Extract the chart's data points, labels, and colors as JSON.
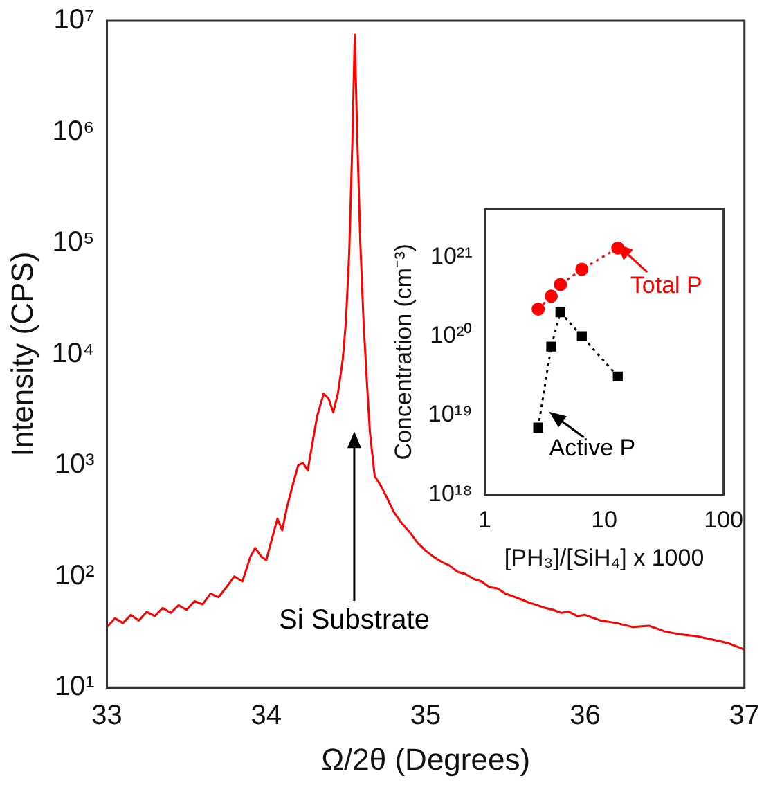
{
  "chart_data": [
    {
      "type": "line",
      "xlabel": "Ω/2θ (Degrees)",
      "ylabel": "Intensity (CPS)",
      "log": "y",
      "grid": false,
      "legend": false,
      "marker": "none",
      "xlim": [
        33,
        37
      ],
      "xticks": [
        33,
        34,
        35,
        36,
        37
      ],
      "ylim": [
        10,
        10000000
      ],
      "yticks": [
        {
          "value": 10,
          "label": "10¹"
        },
        {
          "value": 100,
          "label": "10²"
        },
        {
          "value": 1000,
          "label": "10³"
        },
        {
          "value": 10000,
          "label": "10⁴"
        },
        {
          "value": 100000,
          "label": "10⁵"
        },
        {
          "value": 1000000,
          "label": "10⁶"
        },
        {
          "value": 10000000,
          "label": "10⁷"
        }
      ],
      "annotations": [
        "Si Substrate"
      ],
      "series": [
        {
          "color": "#ff0000",
          "x": [
            33.0,
            33.05,
            33.1,
            33.15,
            33.2,
            33.25,
            33.3,
            33.35,
            33.4,
            33.45,
            33.5,
            33.55,
            33.6,
            33.65,
            33.7,
            33.75,
            33.8,
            33.85,
            33.9,
            33.93,
            33.97,
            34.0,
            34.04,
            34.07,
            34.1,
            34.13,
            34.17,
            34.2,
            34.23,
            34.26,
            34.29,
            34.32,
            34.36,
            34.39,
            34.42,
            34.45,
            34.48,
            34.5,
            34.52,
            34.54,
            34.555,
            34.57,
            34.59,
            34.61,
            34.63,
            34.65,
            34.68,
            34.72,
            34.76,
            34.8,
            34.85,
            34.9,
            34.95,
            35.0,
            35.05,
            35.1,
            35.15,
            35.2,
            35.25,
            35.3,
            35.35,
            35.4,
            35.45,
            35.5,
            35.55,
            35.6,
            35.65,
            35.7,
            35.75,
            35.8,
            35.85,
            35.9,
            35.95,
            36.0,
            36.1,
            36.2,
            36.3,
            36.4,
            36.5,
            36.6,
            36.7,
            36.8,
            36.9,
            37.0
          ],
          "values": [
            35,
            42,
            38,
            45,
            40,
            48,
            44,
            52,
            47,
            55,
            50,
            60,
            56,
            70,
            65,
            80,
            100,
            90,
            150,
            180,
            150,
            140,
            230,
            330,
            260,
            420,
            700,
            1000,
            1050,
            900,
            1600,
            2800,
            4400,
            4000,
            3000,
            4500,
            9000,
            20000,
            80000,
            800000,
            7500000,
            1000000,
            100000,
            20000,
            6000,
            2000,
            800,
            650,
            500,
            380,
            300,
            250,
            200,
            170,
            150,
            135,
            125,
            110,
            105,
            95,
            90,
            80,
            78,
            70,
            66,
            62,
            58,
            55,
            52,
            50,
            47,
            48,
            44,
            45,
            40,
            38,
            35,
            36,
            32,
            30,
            29,
            27,
            25,
            22
          ]
        }
      ]
    },
    {
      "type": "line",
      "xlabel": "[PH₃]/[SiH₄] x 1000",
      "ylabel": "Concentration (cm⁻³)",
      "log": "xy",
      "grid": false,
      "legend": false,
      "line_style": "dotted",
      "xlim": [
        1,
        100
      ],
      "xticks": [
        1,
        10,
        100
      ],
      "ylim": [
        1e+18,
        4e+21
      ],
      "yticks": [
        {
          "value": 1e+18,
          "label": "10¹⁸"
        },
        {
          "value": 1e+19,
          "label": "10¹⁹"
        },
        {
          "value": 1e+20,
          "label": "10²⁰"
        },
        {
          "value": 1e+21,
          "label": "10²¹"
        }
      ],
      "annotations": [
        "Total P",
        "Active P"
      ],
      "series": [
        {
          "color": "#ff0000",
          "marker": "circle",
          "x": [
            2.8,
            3.6,
            4.3,
            6.5,
            13
          ],
          "values": [
            2.2e+20,
            3.2e+20,
            4.5e+20,
            7e+20,
            1.3e+21
          ]
        },
        {
          "color": "#000000",
          "marker": "square",
          "x": [
            2.8,
            3.6,
            4.3,
            6.5,
            13
          ],
          "values": [
            7e+18,
            7.4e+19,
            2e+20,
            1e+20,
            3.1e+19
          ]
        }
      ]
    }
  ]
}
